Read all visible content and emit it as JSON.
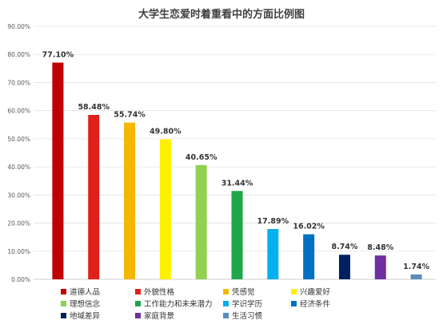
{
  "chart_data": {
    "type": "bar",
    "title": "大学生恋爱时着重看中的方面比例图",
    "xlabel": "",
    "ylabel": "",
    "ylim": [
      0,
      90
    ],
    "yticks": [
      "0.00%",
      "10.00%",
      "20.00%",
      "30.00%",
      "40.00%",
      "50.00%",
      "60.00%",
      "70.00%",
      "80.00%",
      "90.00%"
    ],
    "grid": true,
    "legend_position": "bottom",
    "series": [
      {
        "name": "道德人品",
        "value": 77.1,
        "label": "77.10%",
        "color": "#C00000"
      },
      {
        "name": "外貌性格",
        "value": 58.48,
        "label": "58.48%",
        "color": "#E0201B"
      },
      {
        "name": "凭感觉",
        "value": 55.74,
        "label": "55.74%",
        "color": "#F5B800"
      },
      {
        "name": "兴趣爱好",
        "value": 49.8,
        "label": "49.80%",
        "color": "#FFEF00"
      },
      {
        "name": "理想信念",
        "value": 40.65,
        "label": "40.65%",
        "color": "#92D050"
      },
      {
        "name": "工作能力和未来潜力",
        "value": 31.44,
        "label": "31.44%",
        "color": "#1FA64A"
      },
      {
        "name": "学识学历",
        "value": 17.89,
        "label": "17.89%",
        "color": "#00B0F0"
      },
      {
        "name": "经济条件",
        "value": 16.02,
        "label": "16.02%",
        "color": "#0070C0"
      },
      {
        "name": "地域差异",
        "value": 8.74,
        "label": "8.74%",
        "color": "#002060"
      },
      {
        "name": "家庭背景",
        "value": 8.48,
        "label": "8.48%",
        "color": "#7030A0"
      },
      {
        "name": "生活习惯",
        "value": 1.74,
        "label": "1.74%",
        "color": "#5B8DB8"
      }
    ]
  }
}
